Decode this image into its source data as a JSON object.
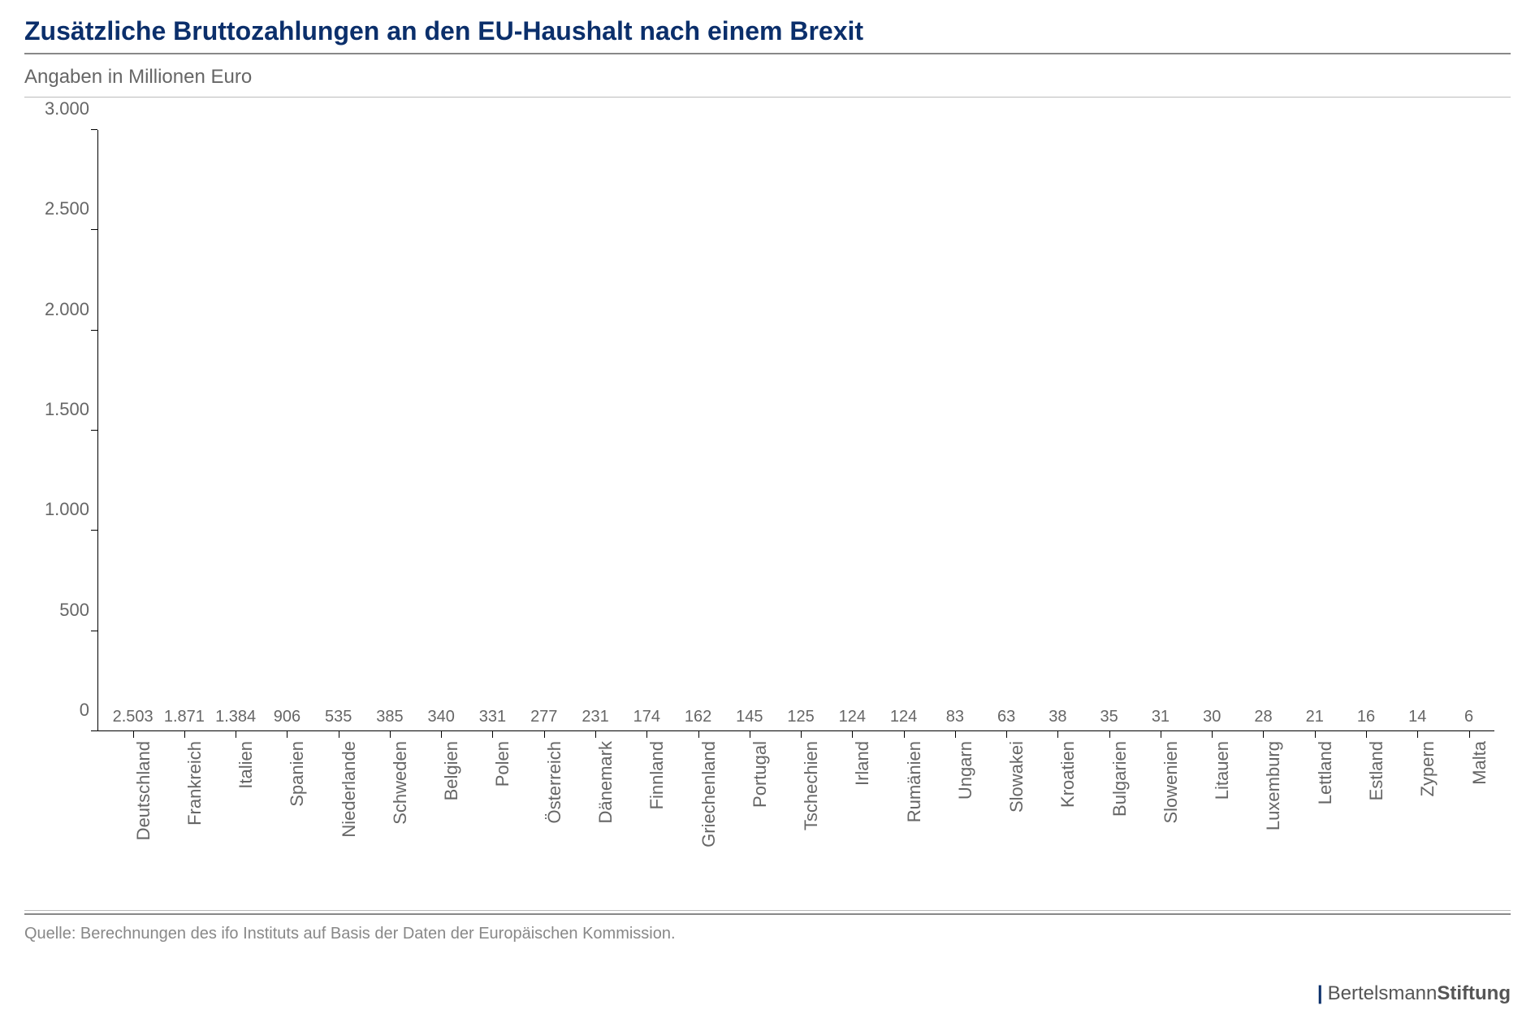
{
  "title": "Zusätzliche Bruttozahlungen an den EU-Haushalt nach einem Brexit",
  "subtitle": "Angaben in Millionen Euro",
  "source": "Quelle: Berechnungen des ifo Instituts auf Basis der Daten der Europäischen Kommission.",
  "brand": {
    "part1": "Bertelsmann",
    "part2": "Stiftung"
  },
  "chart": {
    "type": "bar",
    "bar_color": "#0b2f6b",
    "text_color": "#666666",
    "axis_color": "#000000",
    "background_color": "#ffffff",
    "ylim": [
      0,
      3000
    ],
    "yticks": [
      0,
      500,
      1000,
      1500,
      2000,
      2500,
      3000
    ],
    "ytick_labels": [
      "0",
      "500",
      "1.000",
      "1.500",
      "2.000",
      "2.500",
      "3.000"
    ],
    "bar_width_ratio": 0.72,
    "value_fontsize": 20,
    "label_fontsize": 22,
    "ytick_fontsize": 22,
    "categories": [
      "Deutschland",
      "Frankreich",
      "Italien",
      "Spanien",
      "Niederlande",
      "Schweden",
      "Belgien",
      "Polen",
      "Österreich",
      "Dänemark",
      "Finnland",
      "Griechenland",
      "Portugal",
      "Tschechien",
      "Irland",
      "Rumänien",
      "Ungarn",
      "Slowakei",
      "Kroatien",
      "Bulgarien",
      "Slowenien",
      "Litauen",
      "Luxemburg",
      "Lettland",
      "Estland",
      "Zypern",
      "Malta"
    ],
    "values": [
      2503,
      1871,
      1384,
      906,
      535,
      385,
      340,
      331,
      277,
      231,
      174,
      162,
      145,
      125,
      124,
      124,
      83,
      63,
      38,
      35,
      31,
      30,
      28,
      21,
      16,
      14,
      6
    ],
    "value_labels": [
      "2.503",
      "1.871",
      "1.384",
      "906",
      "535",
      "385",
      "340",
      "331",
      "277",
      "231",
      "174",
      "162",
      "145",
      "125",
      "124",
      "124",
      "83",
      "63",
      "38",
      "35",
      "31",
      "30",
      "28",
      "21",
      "16",
      "14",
      "6"
    ]
  }
}
